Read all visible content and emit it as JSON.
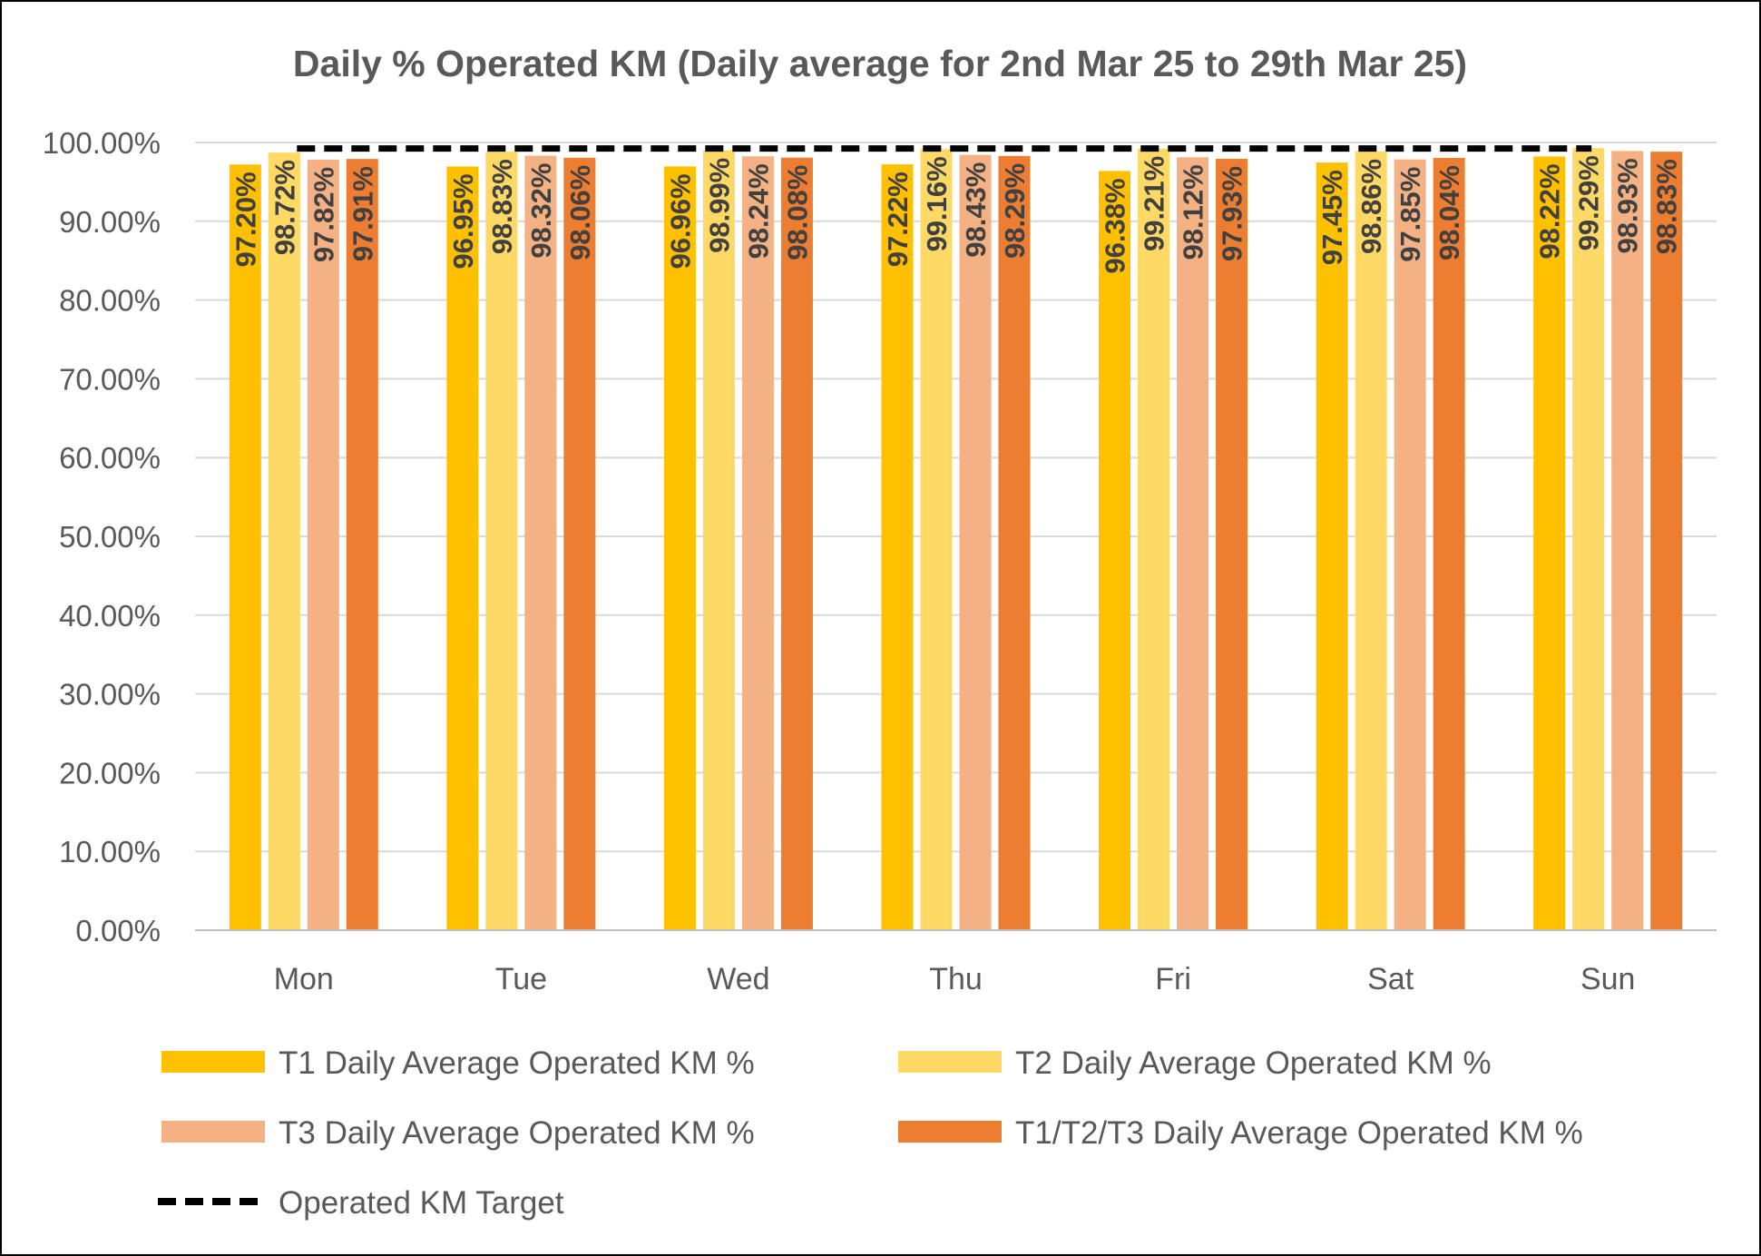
{
  "chart_data": {
    "type": "bar",
    "title": "Daily % Operated KM (Daily average for 2nd Mar 25 to 29th Mar 25)",
    "xlabel": "",
    "ylabel": "",
    "categories": [
      "Mon",
      "Tue",
      "Wed",
      "Thu",
      "Fri",
      "Sat",
      "Sun"
    ],
    "ylim": [
      0,
      100
    ],
    "yticks": [
      0,
      10,
      20,
      30,
      40,
      50,
      60,
      70,
      80,
      90,
      100
    ],
    "ytick_labels": [
      "0.00%",
      "10.00%",
      "20.00%",
      "30.00%",
      "40.00%",
      "50.00%",
      "60.00%",
      "70.00%",
      "80.00%",
      "90.00%",
      "100.00%"
    ],
    "grid": true,
    "legend_position": "bottom",
    "series": [
      {
        "name": "T1 Daily Average Operated KM %",
        "color": "#FFC000",
        "values": [
          97.2,
          96.95,
          96.96,
          97.22,
          96.38,
          97.45,
          98.22
        ],
        "labels": [
          "97.20%",
          "96.95%",
          "96.96%",
          "97.22%",
          "96.38%",
          "97.45%",
          "98.22%"
        ]
      },
      {
        "name": "T2 Daily Average Operated KM %",
        "color": "#FFD966",
        "values": [
          98.72,
          98.83,
          98.99,
          99.16,
          99.21,
          98.86,
          99.29
        ],
        "labels": [
          "98.72%",
          "98.83%",
          "98.99%",
          "99.16%",
          "99.21%",
          "98.86%",
          "99.29%"
        ]
      },
      {
        "name": "T3 Daily Average Operated KM %",
        "color": "#F4B183",
        "values": [
          97.82,
          98.32,
          98.24,
          98.43,
          98.12,
          97.85,
          98.93
        ],
        "labels": [
          "97.82%",
          "98.32%",
          "98.24%",
          "98.43%",
          "98.12%",
          "97.85%",
          "98.93%"
        ]
      },
      {
        "name": "T1/T2/T3 Daily Average Operated KM %",
        "color": "#ED7D31",
        "values": [
          97.91,
          98.06,
          98.08,
          98.29,
          97.93,
          98.04,
          98.83
        ],
        "labels": [
          "97.91%",
          "98.06%",
          "98.08%",
          "98.29%",
          "97.93%",
          "98.04%",
          "98.83%"
        ]
      }
    ],
    "target_line": {
      "name": "Operated KM Target",
      "color": "#000000",
      "style": "dashed",
      "value": 99
    }
  }
}
